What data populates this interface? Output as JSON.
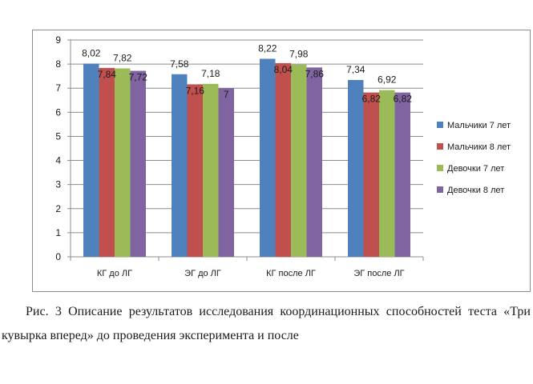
{
  "chart_data": {
    "type": "bar",
    "categories": [
      "КГ до ЛГ",
      "ЭГ до ЛГ",
      "КГ после ЛГ",
      "ЭГ после ЛГ"
    ],
    "series": [
      {
        "name": "Мальчики 7 лет",
        "color": "#4f81bd",
        "values": [
          8.02,
          7.58,
          8.22,
          7.34
        ],
        "labels": [
          "8,02",
          "7,58",
          "8,22",
          "7,34"
        ]
      },
      {
        "name": "Мальчики 8 лет",
        "color": "#c0504d",
        "values": [
          7.84,
          7.16,
          8.04,
          6.82
        ],
        "labels": [
          "7,84",
          "7,16",
          "8,04",
          "6,82"
        ]
      },
      {
        "name": "Девочки 7 лет",
        "color": "#9bbb59",
        "values": [
          7.82,
          7.18,
          7.98,
          6.92
        ],
        "labels": [
          "7,82",
          "7,18",
          "7,98",
          "6,92"
        ]
      },
      {
        "name": "Девочки 8 лет",
        "color": "#8064a2",
        "values": [
          7.72,
          7.0,
          7.86,
          6.82
        ],
        "labels": [
          "7,72",
          "7",
          "7,86",
          "6,82"
        ]
      }
    ],
    "ylim": [
      0,
      9
    ],
    "yticks": [
      "0",
      "1",
      "2",
      "3",
      "4",
      "5",
      "6",
      "7",
      "8",
      "9"
    ],
    "grid": true,
    "legend": "right"
  },
  "caption": {
    "text": "Рис. 3 Описание результатов исследования координационных способностей теста «Три кувырка вперед» до проведения эксперимента и после"
  }
}
